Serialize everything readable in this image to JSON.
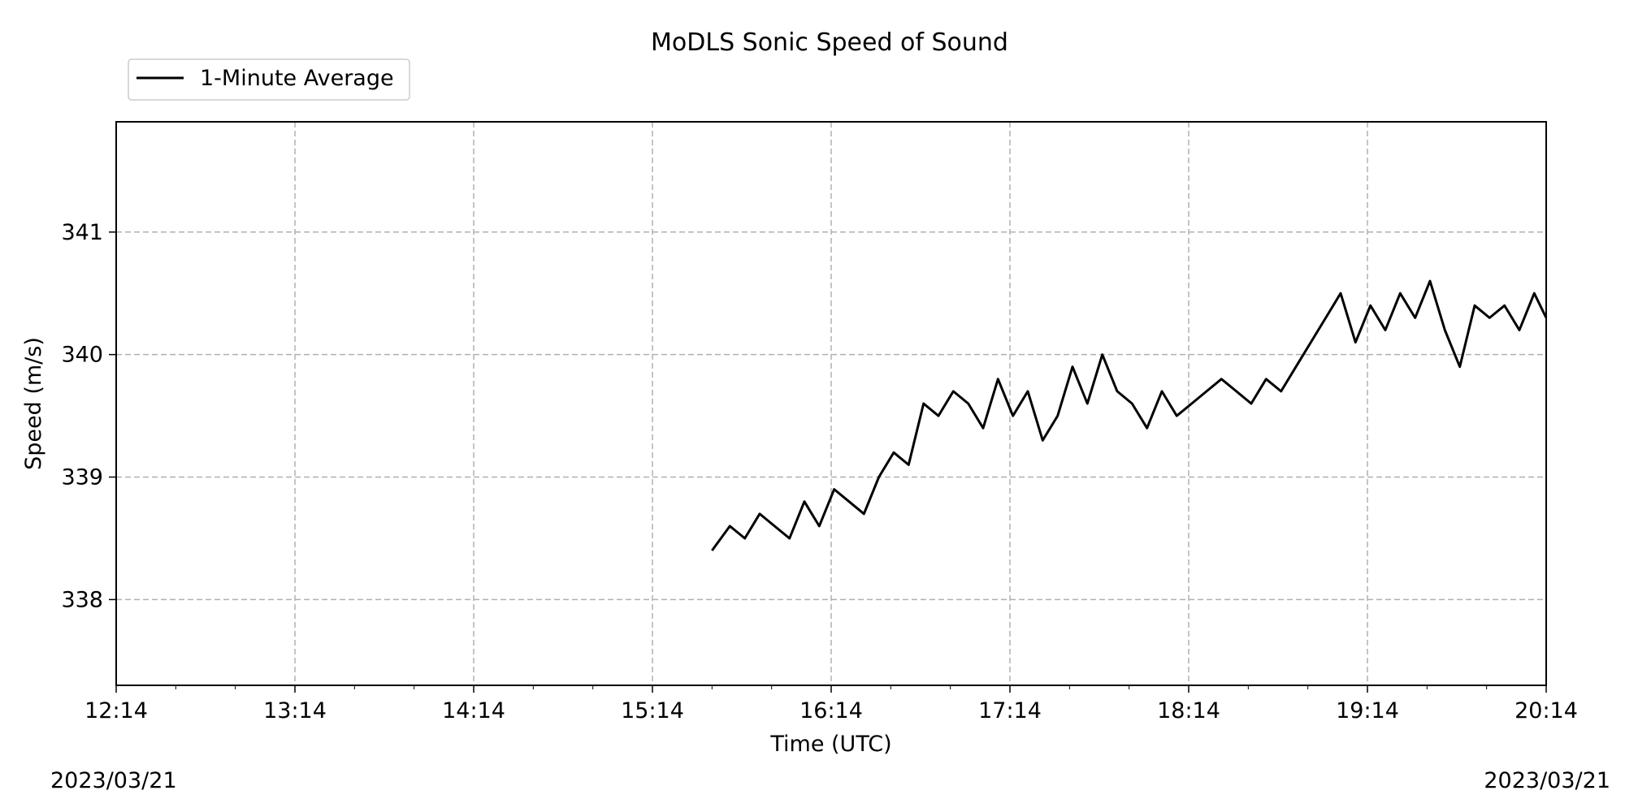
{
  "chart_data": {
    "type": "line",
    "title": "MoDLS Sonic Speed of Sound",
    "xlabel": "Time (UTC)",
    "ylabel": "Speed (m/s)",
    "x_start_label": "2023/03/21",
    "x_end_label": "2023/03/21",
    "x_range": [
      "2023-03-21 12:14",
      "2023-03-21 20:14"
    ],
    "ylim": [
      337.3,
      341.9
    ],
    "x_ticks": [
      "12:14",
      "13:14",
      "14:14",
      "15:14",
      "16:14",
      "17:14",
      "18:14",
      "19:14",
      "20:14"
    ],
    "y_ticks": [
      338,
      339,
      340,
      341
    ],
    "grid": true,
    "legend": "upper-left",
    "series": [
      {
        "name": "1-Minute Average",
        "color": "#000000",
        "x": [
          "15:34",
          "15:40",
          "15:45",
          "15:50",
          "15:55",
          "16:00",
          "16:05",
          "16:10",
          "16:15",
          "16:20",
          "16:25",
          "16:30",
          "16:35",
          "16:40",
          "16:45",
          "16:50",
          "16:55",
          "17:00",
          "17:05",
          "17:10",
          "17:15",
          "17:20",
          "17:25",
          "17:30",
          "17:35",
          "17:40",
          "17:45",
          "17:50",
          "17:55",
          "18:00",
          "18:05",
          "18:10",
          "18:15",
          "18:20",
          "18:25",
          "18:30",
          "18:35",
          "18:40",
          "18:45",
          "18:50",
          "18:55",
          "19:00",
          "19:05",
          "19:10",
          "19:15",
          "19:20",
          "19:25",
          "19:30",
          "19:35",
          "19:40",
          "19:45",
          "19:50",
          "19:55",
          "20:00",
          "20:05",
          "20:10",
          "20:14"
        ],
        "y": [
          338.4,
          338.6,
          338.5,
          338.7,
          338.6,
          338.5,
          338.8,
          338.6,
          338.9,
          338.8,
          338.7,
          339.0,
          339.2,
          339.1,
          339.6,
          339.5,
          339.7,
          339.6,
          339.4,
          339.8,
          339.5,
          339.7,
          339.3,
          339.5,
          339.9,
          339.6,
          340.0,
          339.7,
          339.6,
          339.4,
          339.7,
          339.5,
          339.6,
          339.7,
          339.8,
          339.7,
          339.6,
          339.8,
          339.7,
          339.9,
          340.1,
          340.3,
          340.5,
          340.1,
          340.4,
          340.2,
          340.5,
          340.3,
          340.6,
          340.2,
          339.9,
          340.4,
          340.3,
          340.4,
          340.2,
          340.5,
          340.3
        ]
      }
    ]
  }
}
